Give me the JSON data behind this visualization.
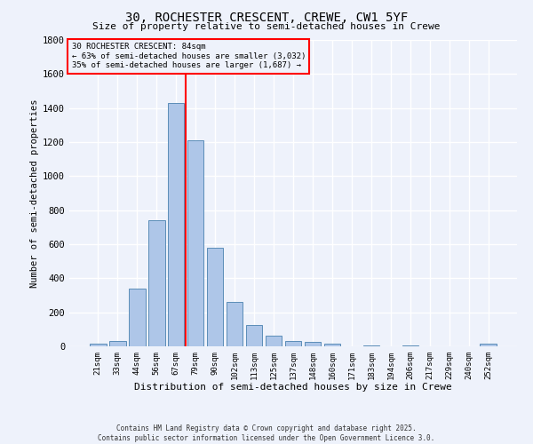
{
  "title1": "30, ROCHESTER CRESCENT, CREWE, CW1 5YF",
  "title2": "Size of property relative to semi-detached houses in Crewe",
  "xlabel": "Distribution of semi-detached houses by size in Crewe",
  "ylabel": "Number of semi-detached properties",
  "categories": [
    "21sqm",
    "33sqm",
    "44sqm",
    "56sqm",
    "67sqm",
    "79sqm",
    "90sqm",
    "102sqm",
    "113sqm",
    "125sqm",
    "137sqm",
    "148sqm",
    "160sqm",
    "171sqm",
    "183sqm",
    "194sqm",
    "206sqm",
    "217sqm",
    "229sqm",
    "240sqm",
    "252sqm"
  ],
  "values": [
    15,
    30,
    340,
    740,
    1430,
    1210,
    580,
    260,
    125,
    65,
    30,
    25,
    15,
    0,
    5,
    0,
    5,
    0,
    0,
    0,
    15
  ],
  "bar_color": "#aec6e8",
  "bar_edge_color": "#5b8db8",
  "vline_x": 4.5,
  "vline_color": "red",
  "annotation_title": "30 ROCHESTER CRESCENT: 84sqm",
  "annotation_line1": "← 63% of semi-detached houses are smaller (3,032)",
  "annotation_line2": "35% of semi-detached houses are larger (1,687) →",
  "ylim": [
    0,
    1800
  ],
  "yticks": [
    0,
    200,
    400,
    600,
    800,
    1000,
    1200,
    1400,
    1600,
    1800
  ],
  "background_color": "#eef2fb",
  "grid_color": "#ffffff",
  "footer1": "Contains HM Land Registry data © Crown copyright and database right 2025.",
  "footer2": "Contains public sector information licensed under the Open Government Licence 3.0."
}
